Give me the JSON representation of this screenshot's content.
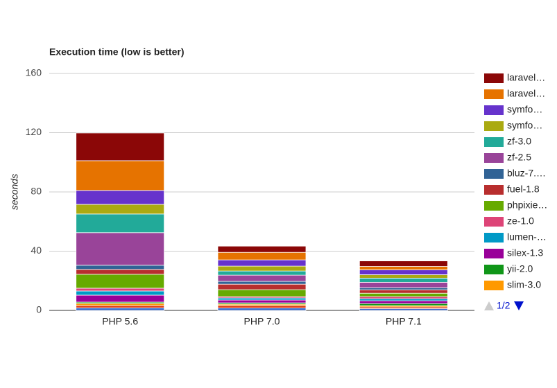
{
  "chart_data": {
    "type": "bar",
    "stacked": true,
    "title": "Execution time (low is better)",
    "y_label": "seconds",
    "categories": [
      "PHP 5.6",
      "PHP 7.0",
      "PHP 7.1"
    ],
    "ylim": [
      0,
      160
    ],
    "yticks": [
      0,
      40,
      80,
      120,
      160
    ],
    "grid": true,
    "legend_position": "right",
    "legend_page": "1/2",
    "series": [
      {
        "name": "laravel…",
        "color": "#8b0707",
        "values": [
          18.7,
          4.2,
          3.7
        ]
      },
      {
        "name": "laravel…",
        "color": "#e67300",
        "values": [
          20.1,
          5.1,
          2.3
        ]
      },
      {
        "name": "symfo…",
        "color": "#6633cc",
        "values": [
          9.4,
          4.2,
          3.3
        ]
      },
      {
        "name": "symfo…",
        "color": "#aaaa11",
        "values": [
          6.5,
          3.3,
          2.3
        ]
      },
      {
        "name": "zf-3.0",
        "color": "#22aa99",
        "values": [
          12.6,
          2.8,
          2.8
        ]
      },
      {
        "name": "zf-2.5",
        "color": "#994499",
        "values": [
          22.0,
          4.2,
          3.7
        ]
      },
      {
        "name": "bluz-7.…",
        "color": "#316395",
        "values": [
          2.8,
          1.9,
          1.4
        ]
      },
      {
        "name": "fuel-1.8",
        "color": "#b82e2e",
        "values": [
          3.3,
          3.7,
          2.3
        ]
      },
      {
        "name": "phpixie…",
        "color": "#66aa00",
        "values": [
          9.4,
          4.7,
          2.3
        ]
      },
      {
        "name": "ze-1.0",
        "color": "#dd4477",
        "values": [
          1.9,
          0.9,
          1.4
        ]
      },
      {
        "name": "lumen-…",
        "color": "#0099c6",
        "values": [
          2.8,
          1.4,
          1.4
        ]
      },
      {
        "name": "silex-1.3",
        "color": "#990099",
        "values": [
          4.7,
          1.9,
          1.9
        ]
      },
      {
        "name": "yii-2.0",
        "color": "#109618",
        "values": [
          0.9,
          0.9,
          1.4
        ]
      },
      {
        "name": "slim-3.0",
        "color": "#ff9900",
        "values": [
          1.4,
          0.9,
          0.9
        ]
      },
      {
        "name": null,
        "color": "#dc3912",
        "values": [
          1.6,
          1.7,
          1.1
        ]
      },
      {
        "name": null,
        "color": "#3366cc",
        "values": [
          1.7,
          1.6,
          1.2
        ]
      }
    ]
  }
}
